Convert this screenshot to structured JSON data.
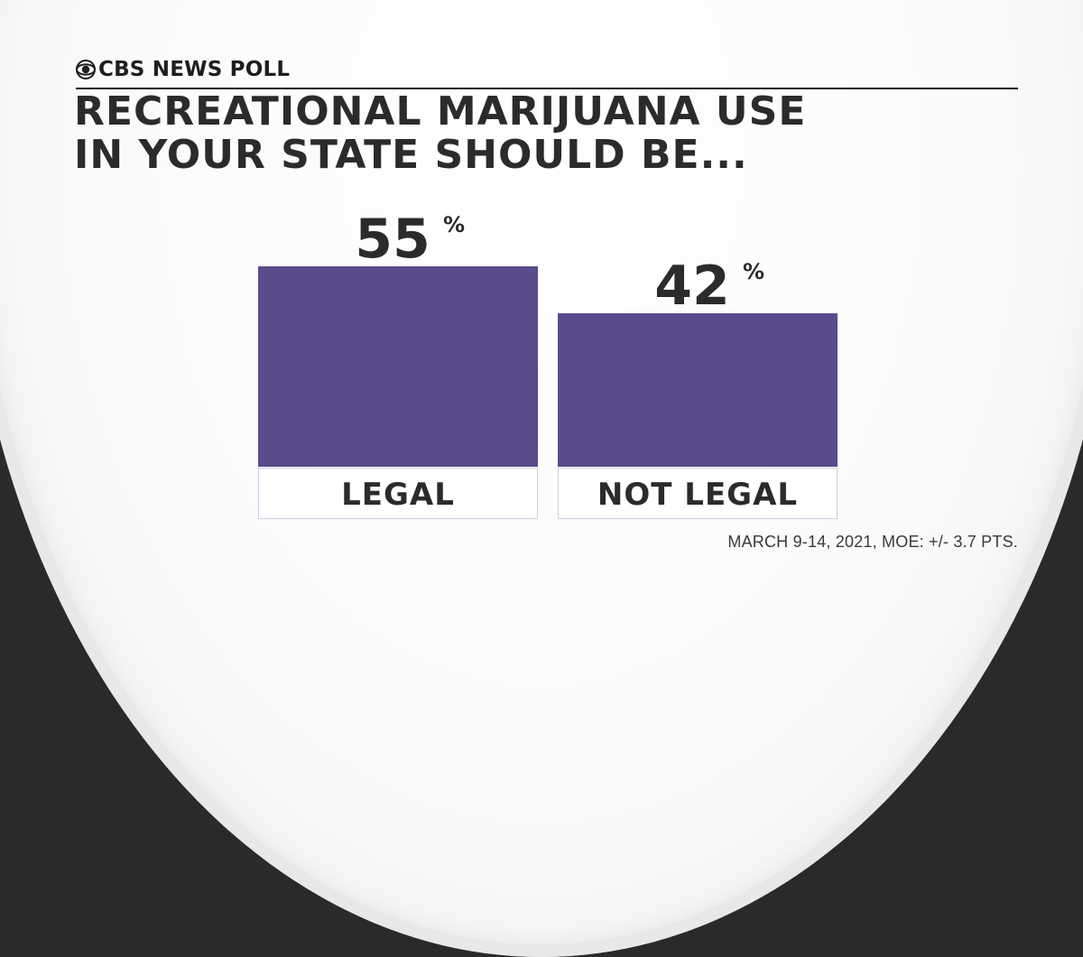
{
  "brand": {
    "text": "CBS NEWS POLL",
    "icon": "cbs-eye-icon"
  },
  "title": {
    "line1": "RECREATIONAL MARIJUANA USE",
    "line2": "IN YOUR STATE SHOULD BE..."
  },
  "footnote": "MARCH 9-14, 2021, MOE: +/- 3.7 PTS.",
  "colors": {
    "bar": "#5a4b8a",
    "text": "#2b2b2b",
    "label_border": "#cfcfe0"
  },
  "chart_data": {
    "type": "bar",
    "categories": [
      "LEGAL",
      "NOT LEGAL"
    ],
    "values": [
      55,
      42
    ],
    "value_labels": [
      "55",
      "42"
    ],
    "value_suffix": "%",
    "title": "RECREATIONAL MARIJUANA USE IN YOUR STATE SHOULD BE...",
    "xlabel": "",
    "ylabel": "",
    "ylim": [
      0,
      55
    ],
    "grid": false,
    "legend": "none"
  }
}
